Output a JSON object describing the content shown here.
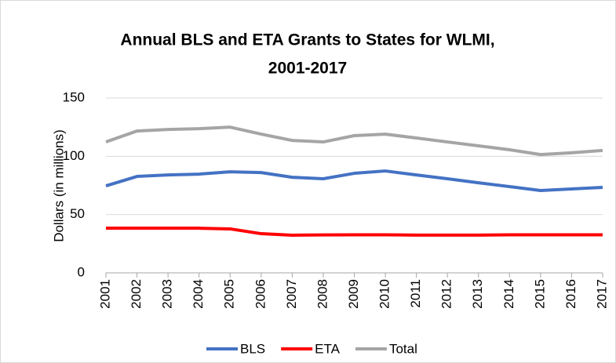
{
  "chart_data": {
    "type": "line",
    "title": [
      "Annual BLS and ETA Grants to States for WLMI,",
      "2001-2017"
    ],
    "y_label": "Dollars (in millions)",
    "categories": [
      "2001",
      "2002",
      "2003",
      "2004",
      "2005",
      "2006",
      "2007",
      "2008",
      "2009",
      "2010",
      "2011",
      "2012",
      "2013",
      "2014",
      "2015",
      "2016",
      "2017"
    ],
    "series": [
      {
        "name": "BLS",
        "color": "#4472c4",
        "values": [
          74.6,
          82.7,
          84.0,
          84.7,
          86.7,
          86.0,
          82.0,
          80.7,
          85.4,
          87.4,
          84.0,
          80.7,
          77.3,
          74.0,
          70.6,
          72.0,
          73.3
        ]
      },
      {
        "name": "ETA",
        "color": "#ff0000",
        "values": [
          38.3,
          38.3,
          38.3,
          38.3,
          37.7,
          33.6,
          32.3,
          32.5,
          32.6,
          32.6,
          32.4,
          32.4,
          32.4,
          32.6,
          32.6,
          32.6,
          32.6
        ]
      },
      {
        "name": "Total",
        "color": "#a5a5a5",
        "values": [
          112.3,
          121.7,
          123.0,
          123.7,
          125.0,
          119.0,
          113.6,
          112.3,
          117.7,
          119.0,
          115.7,
          112.3,
          109.0,
          105.6,
          101.5,
          103.0,
          105.0
        ]
      }
    ],
    "ylim": [
      0,
      150
    ],
    "yticks": [
      0,
      50,
      100,
      150
    ],
    "grid": true,
    "legend": "bottom"
  }
}
